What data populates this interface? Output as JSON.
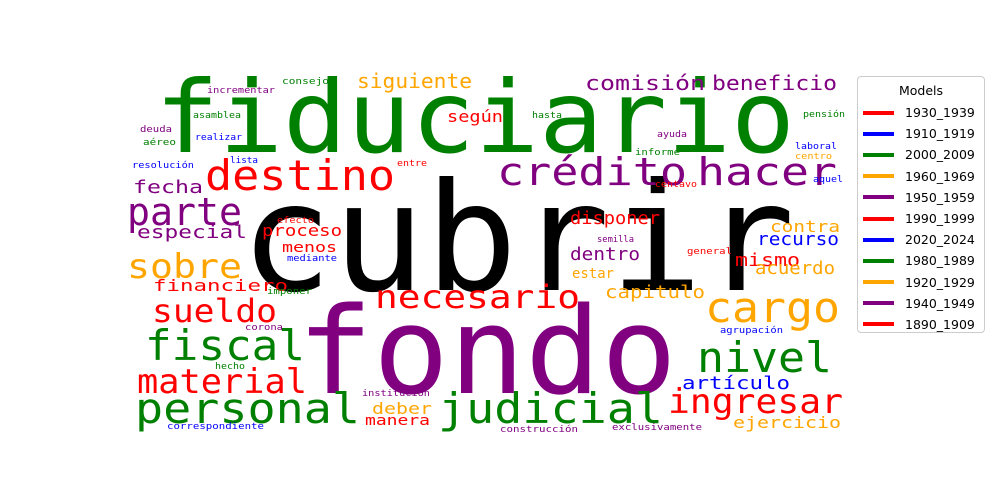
{
  "chart_data": {
    "type": "wordcloud",
    "legend": {
      "title": "Models",
      "placement": "right",
      "entries": [
        {
          "label": "1930_1939",
          "color": "#ff0000"
        },
        {
          "label": "1910_1919",
          "color": "#0000ff"
        },
        {
          "label": "2000_2009",
          "color": "#008000"
        },
        {
          "label": "1960_1969",
          "color": "#ffa500"
        },
        {
          "label": "1950_1959",
          "color": "#800080"
        },
        {
          "label": "1990_1999",
          "color": "#ff0000"
        },
        {
          "label": "2020_2024",
          "color": "#0000ff"
        },
        {
          "label": "1980_1989",
          "color": "#008000"
        },
        {
          "label": "1920_1929",
          "color": "#ffa500"
        },
        {
          "label": "1940_1949",
          "color": "#800080"
        },
        {
          "label": "1890_1909",
          "color": "#ff0000"
        }
      ]
    },
    "words": [
      {
        "text": "cubrir",
        "color": "#000000"
      },
      {
        "text": "fondo",
        "color": "#800080"
      },
      {
        "text": "fiduciario",
        "color": "#008000"
      },
      {
        "text": "destino",
        "color": "#ff0000"
      },
      {
        "text": "crédito",
        "color": "#800080"
      },
      {
        "text": "hacer",
        "color": "#800080"
      },
      {
        "text": "cargo",
        "color": "#ffa500"
      },
      {
        "text": "personal",
        "color": "#008000"
      },
      {
        "text": "judicial",
        "color": "#008000"
      },
      {
        "text": "nivel",
        "color": "#008000"
      },
      {
        "text": "fiscal",
        "color": "#008000"
      },
      {
        "text": "necesario",
        "color": "#ff0000"
      },
      {
        "text": "material",
        "color": "#ff0000"
      },
      {
        "text": "ingresar",
        "color": "#ff0000"
      },
      {
        "text": "parte",
        "color": "#800080"
      },
      {
        "text": "sobre",
        "color": "#ffa500"
      },
      {
        "text": "sueldo",
        "color": "#ff0000"
      },
      {
        "text": "siguiente",
        "color": "#ffa500"
      },
      {
        "text": "comisión",
        "color": "#800080"
      },
      {
        "text": "beneficio",
        "color": "#800080"
      },
      {
        "text": "fecha",
        "color": "#800080"
      },
      {
        "text": "especial",
        "color": "#800080"
      },
      {
        "text": "según",
        "color": "#ff0000"
      },
      {
        "text": "disponer",
        "color": "#ff0000"
      },
      {
        "text": "contra",
        "color": "#ffa500"
      },
      {
        "text": "recurso",
        "color": "#0000ff"
      },
      {
        "text": "dentro",
        "color": "#800080"
      },
      {
        "text": "mismo",
        "color": "#ff0000"
      },
      {
        "text": "acuerdo",
        "color": "#ffa500"
      },
      {
        "text": "capitulo",
        "color": "#ffa500"
      },
      {
        "text": "estar",
        "color": "#ffa500"
      },
      {
        "text": "proceso",
        "color": "#ff0000"
      },
      {
        "text": "menos",
        "color": "#ff0000"
      },
      {
        "text": "financiero",
        "color": "#ff0000"
      },
      {
        "text": "artículo",
        "color": "#0000ff"
      },
      {
        "text": "deber",
        "color": "#ffa500"
      },
      {
        "text": "manera",
        "color": "#ff0000"
      },
      {
        "text": "ejercicio",
        "color": "#ffa500"
      },
      {
        "text": "consejo",
        "color": "#008000"
      },
      {
        "text": "incrementar",
        "color": "#800080"
      },
      {
        "text": "asamblea",
        "color": "#008000"
      },
      {
        "text": "deuda",
        "color": "#800080"
      },
      {
        "text": "aéreo",
        "color": "#008000"
      },
      {
        "text": "realizar",
        "color": "#0000ff"
      },
      {
        "text": "resolución",
        "color": "#0000ff"
      },
      {
        "text": "lista",
        "color": "#0000ff"
      },
      {
        "text": "entre",
        "color": "#ff0000"
      },
      {
        "text": "hasta",
        "color": "#008000"
      },
      {
        "text": "pensión",
        "color": "#008000"
      },
      {
        "text": "ayuda",
        "color": "#800080"
      },
      {
        "text": "informe",
        "color": "#008000"
      },
      {
        "text": "laboral",
        "color": "#0000ff"
      },
      {
        "text": "centro",
        "color": "#ffa500"
      },
      {
        "text": "aquel",
        "color": "#0000ff"
      },
      {
        "text": "centavo",
        "color": "#ff0000"
      },
      {
        "text": "efecto",
        "color": "#ff0000"
      },
      {
        "text": "mediante",
        "color": "#0000ff"
      },
      {
        "text": "semilla",
        "color": "#800080"
      },
      {
        "text": "general",
        "color": "#ff0000"
      },
      {
        "text": "imponer",
        "color": "#008000"
      },
      {
        "text": "corona",
        "color": "#800080"
      },
      {
        "text": "agrupación",
        "color": "#0000ff"
      },
      {
        "text": "hecho",
        "color": "#008000"
      },
      {
        "text": "institución",
        "color": "#800080"
      },
      {
        "text": "correspondiente",
        "color": "#0000ff"
      },
      {
        "text": "construcción",
        "color": "#800080"
      },
      {
        "text": "exclusivamente",
        "color": "#800080"
      }
    ]
  }
}
